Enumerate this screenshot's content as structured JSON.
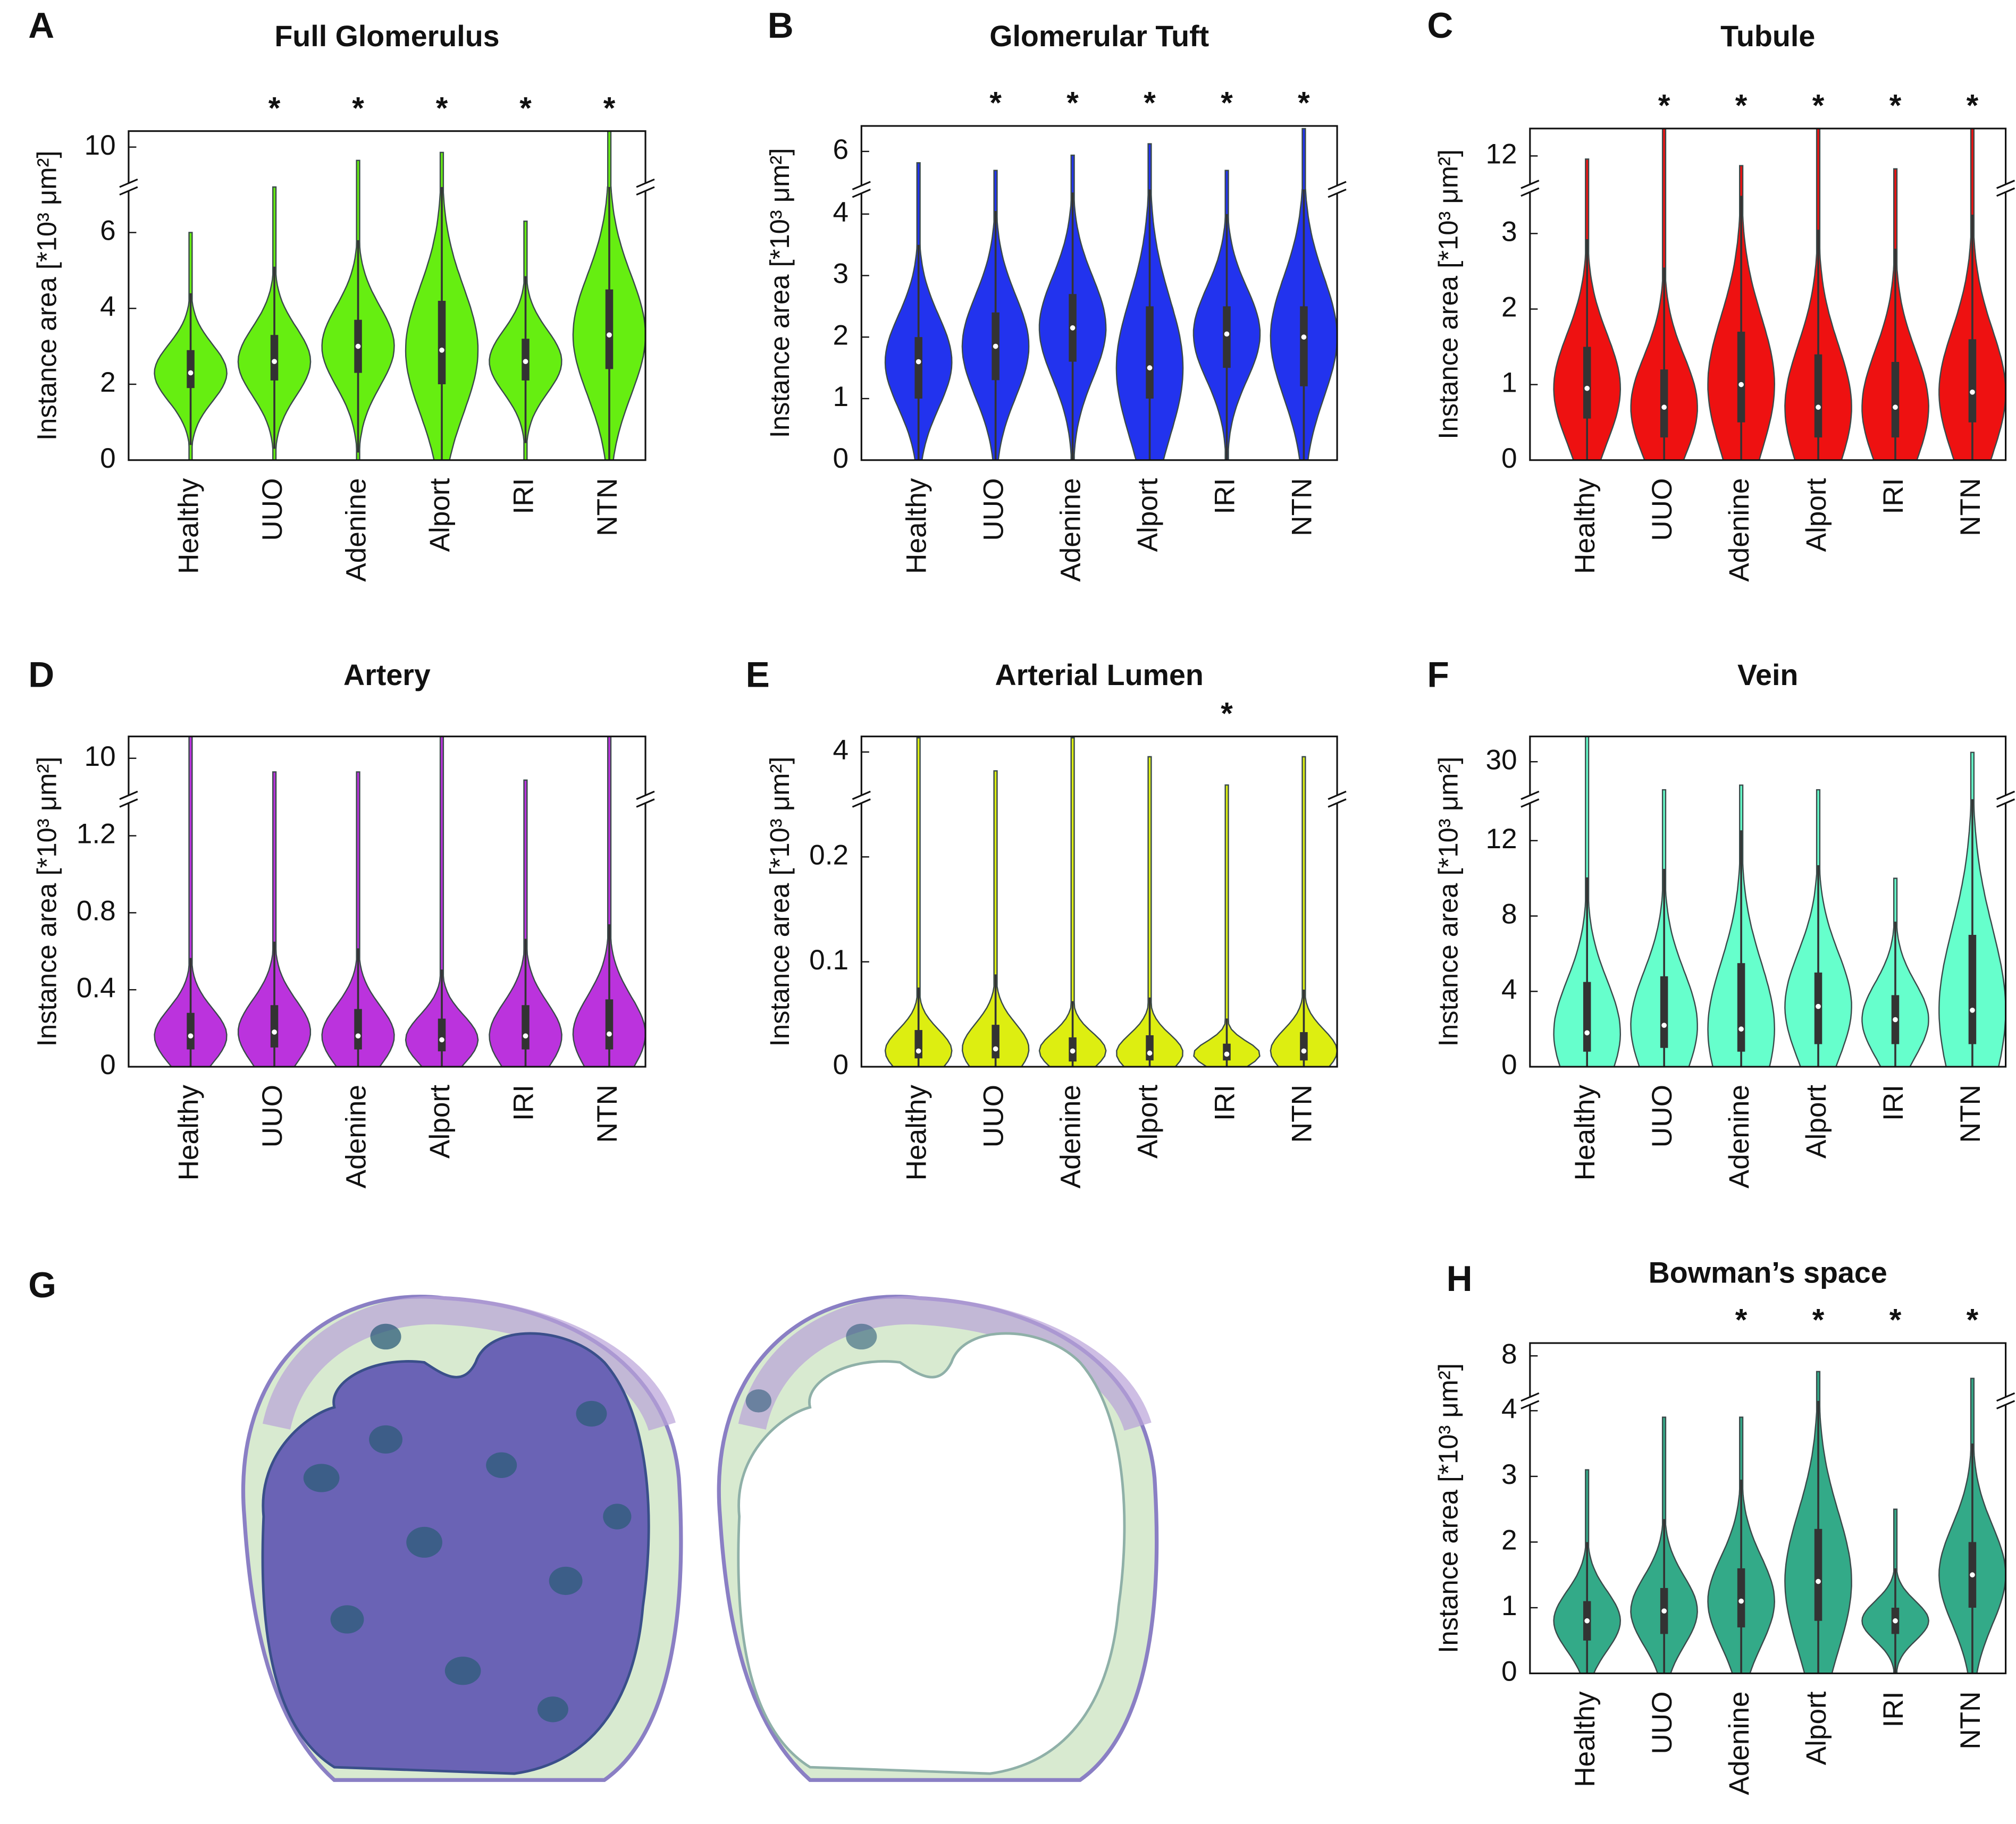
{
  "chart_data": [
    {
      "type": "violin",
      "panel": "A",
      "title": "Full Glomerulus",
      "ylabel": "Instance area [*10³ μm²]",
      "color": "#66ee11",
      "categories": [
        "Healthy",
        "UUO",
        "Adenine",
        "Alport",
        "IRI",
        "NTN"
      ],
      "medians": [
        2.3,
        2.6,
        3.0,
        2.9,
        2.6,
        3.3
      ],
      "q1": [
        1.9,
        2.1,
        2.3,
        2.0,
        2.1,
        2.4
      ],
      "q3": [
        2.9,
        3.3,
        3.7,
        4.2,
        3.2,
        4.5
      ],
      "max": [
        6,
        7.4,
        9.5,
        9.8,
        6.3,
        10.6
      ],
      "ylim": [
        0,
        7.2
      ],
      "yticks": [
        0,
        2,
        4,
        6
      ],
      "ylim_upper": [
        8.5,
        10.6
      ],
      "yticks_upper": [
        10
      ],
      "significance": [
        null,
        "*",
        "*",
        "*",
        "*",
        "*"
      ]
    },
    {
      "type": "violin",
      "panel": "B",
      "title": "Glomerular Tuft",
      "ylabel": "Instance area [*10³ μm²]",
      "color": "#2233ee",
      "categories": [
        "Healthy",
        "UUO",
        "Adenine",
        "Alport",
        "IRI",
        "NTN"
      ],
      "medians": [
        1.6,
        1.85,
        2.15,
        1.5,
        2.05,
        2.0
      ],
      "q1": [
        1.0,
        1.3,
        1.6,
        1.0,
        1.5,
        1.2
      ],
      "q3": [
        2.0,
        2.4,
        2.7,
        2.5,
        2.5,
        2.5
      ],
      "max": [
        5.7,
        5.5,
        5.9,
        6.2,
        5.5,
        6.6
      ],
      "ylim": [
        0,
        4.4
      ],
      "yticks": [
        0,
        1,
        2,
        3,
        4
      ],
      "ylim_upper": [
        5,
        6.67
      ],
      "yticks_upper": [
        6
      ],
      "significance": [
        null,
        "*",
        "*",
        "*",
        "*",
        "*"
      ]
    },
    {
      "type": "violin",
      "panel": "C",
      "title": "Tubule",
      "ylabel": "Instance area [*10³ μm²]",
      "color": "#ee1111",
      "categories": [
        "Healthy",
        "UUO",
        "Adenine",
        "Alport",
        "IRI",
        "NTN"
      ],
      "medians": [
        0.95,
        0.7,
        1.0,
        0.7,
        0.7,
        0.9
      ],
      "q1": [
        0.55,
        0.3,
        0.5,
        0.3,
        0.3,
        0.5
      ],
      "q3": [
        1.5,
        1.2,
        1.7,
        1.4,
        1.3,
        1.6
      ],
      "max": [
        11.9,
        12.85,
        11.7,
        12.85,
        11.6,
        12.85
      ],
      "ylim": [
        0,
        3.6
      ],
      "yticks": [
        0,
        1,
        2,
        3
      ],
      "ylim_upper": [
        11,
        12.85
      ],
      "yticks_upper": [
        12
      ],
      "significance": [
        null,
        "*",
        "*",
        "*",
        "*",
        "*"
      ]
    },
    {
      "type": "violin",
      "panel": "D",
      "title": "Artery",
      "ylabel": "Instance area [*10³ μm²]",
      "color": "#bb33dd",
      "categories": [
        "Healthy",
        "UUO",
        "Adenine",
        "Alport",
        "IRI",
        "NTN"
      ],
      "medians": [
        0.16,
        0.18,
        0.16,
        0.14,
        0.16,
        0.17
      ],
      "q1": [
        0.09,
        0.1,
        0.09,
        0.08,
        0.09,
        0.09
      ],
      "q3": [
        0.28,
        0.32,
        0.3,
        0.25,
        0.32,
        0.35
      ],
      "max": [
        10.8,
        9.5,
        9.5,
        10.8,
        9.2,
        10.8
      ],
      "ylim": [
        0,
        1.39
      ],
      "yticks": [
        0,
        0.4,
        0.8,
        1.2
      ],
      "ylim_upper": [
        8.5,
        10.8
      ],
      "yticks_upper": [
        10
      ],
      "significance": [
        null,
        null,
        null,
        null,
        null,
        null
      ]
    },
    {
      "type": "violin",
      "panel": "E",
      "title": "Arterial Lumen",
      "ylabel": "Instance area [*10³ μm²]",
      "color": "#ddee11",
      "categories": [
        "Healthy",
        "UUO",
        "Adenine",
        "Alport",
        "IRI",
        "NTN"
      ],
      "medians": [
        0.015,
        0.017,
        0.015,
        0.013,
        0.012,
        0.015
      ],
      "q1": [
        0.008,
        0.008,
        0.005,
        0.006,
        0.006,
        0.006
      ],
      "q3": [
        0.035,
        0.04,
        0.028,
        0.03,
        0.022,
        0.033
      ],
      "max": [
        4.3,
        3.6,
        4.3,
        3.9,
        3.3,
        3.9
      ],
      "ylim": [
        0,
        0.255
      ],
      "yticks": [
        0,
        0.1,
        0.2
      ],
      "ylim_upper": [
        3,
        4.33
      ],
      "yticks_upper": [
        4
      ],
      "significance": [
        null,
        null,
        null,
        null,
        "*",
        null
      ]
    },
    {
      "type": "violin",
      "panel": "F",
      "title": "Vein",
      "ylabel": "Instance area [*10³ μm²]",
      "color": "#66ffcc",
      "categories": [
        "Healthy",
        "UUO",
        "Adenine",
        "Alport",
        "IRI",
        "NTN"
      ],
      "medians": [
        1.8,
        2.2,
        2.0,
        3.2,
        2.5,
        3.0
      ],
      "q1": [
        0.8,
        1.0,
        0.8,
        1.2,
        1.2,
        1.2
      ],
      "q3": [
        4.5,
        4.8,
        5.5,
        5.0,
        3.8,
        7.0
      ],
      "max": [
        32.7,
        27,
        27.5,
        27,
        10,
        31
      ],
      "ylim": [
        0,
        14.2
      ],
      "yticks": [
        0,
        4,
        8,
        12
      ],
      "ylim_upper": [
        26,
        32.7
      ],
      "yticks_upper": [
        30
      ],
      "significance": [
        null,
        null,
        null,
        null,
        null,
        null
      ]
    },
    {
      "type": "violin",
      "panel": "H",
      "title": "Bowman’s space",
      "ylabel": "Instance area [*10³ μm²]",
      "color": "#33aa88",
      "categories": [
        "Healthy",
        "UUO",
        "Adenine",
        "Alport",
        "IRI",
        "NTN"
      ],
      "medians": [
        0.8,
        0.95,
        1.1,
        1.4,
        0.8,
        1.5
      ],
      "q1": [
        0.5,
        0.6,
        0.7,
        0.8,
        0.6,
        1.0
      ],
      "q3": [
        1.1,
        1.3,
        1.6,
        2.2,
        1.0,
        2.0
      ],
      "max": [
        3.1,
        3.9,
        3.9,
        7.3,
        2.5,
        7.0
      ],
      "ylim": [
        0,
        4.15
      ],
      "yticks": [
        0,
        1,
        2,
        3,
        4
      ],
      "ylim_upper": [
        6,
        8.57
      ],
      "yticks_upper": [
        8
      ],
      "significance": [
        null,
        null,
        "*",
        "*",
        "*",
        "*"
      ]
    }
  ],
  "image_panel": {
    "panel": "G"
  }
}
